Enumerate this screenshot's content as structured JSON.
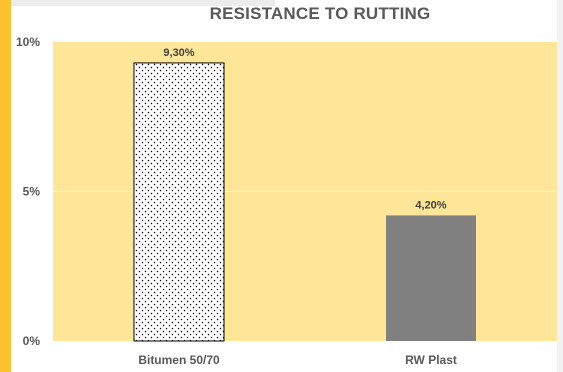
{
  "chart_data": {
    "type": "bar",
    "title": "RESISTANCE TO RUTTING",
    "categories": [
      "Bitumen 50/70",
      "RW Plast"
    ],
    "values": [
      9.3,
      4.2
    ],
    "value_labels": [
      "9,30%",
      "4,20%"
    ],
    "y_ticks": [
      {
        "value": 0,
        "label": "0%"
      },
      {
        "value": 5,
        "label": "5%"
      },
      {
        "value": 10,
        "label": "10%"
      }
    ],
    "ylim": [
      0,
      10
    ],
    "grid": true,
    "legend": "none",
    "bar_styles": [
      "dotted-white",
      "solid-gray"
    ],
    "colors": {
      "plot_background": "#ffe699",
      "gridline": "#f2f2f2",
      "bar_solid": "#808080",
      "bar_outline": "#000000",
      "dot": "#000000",
      "accent": "#f9c22e"
    }
  }
}
